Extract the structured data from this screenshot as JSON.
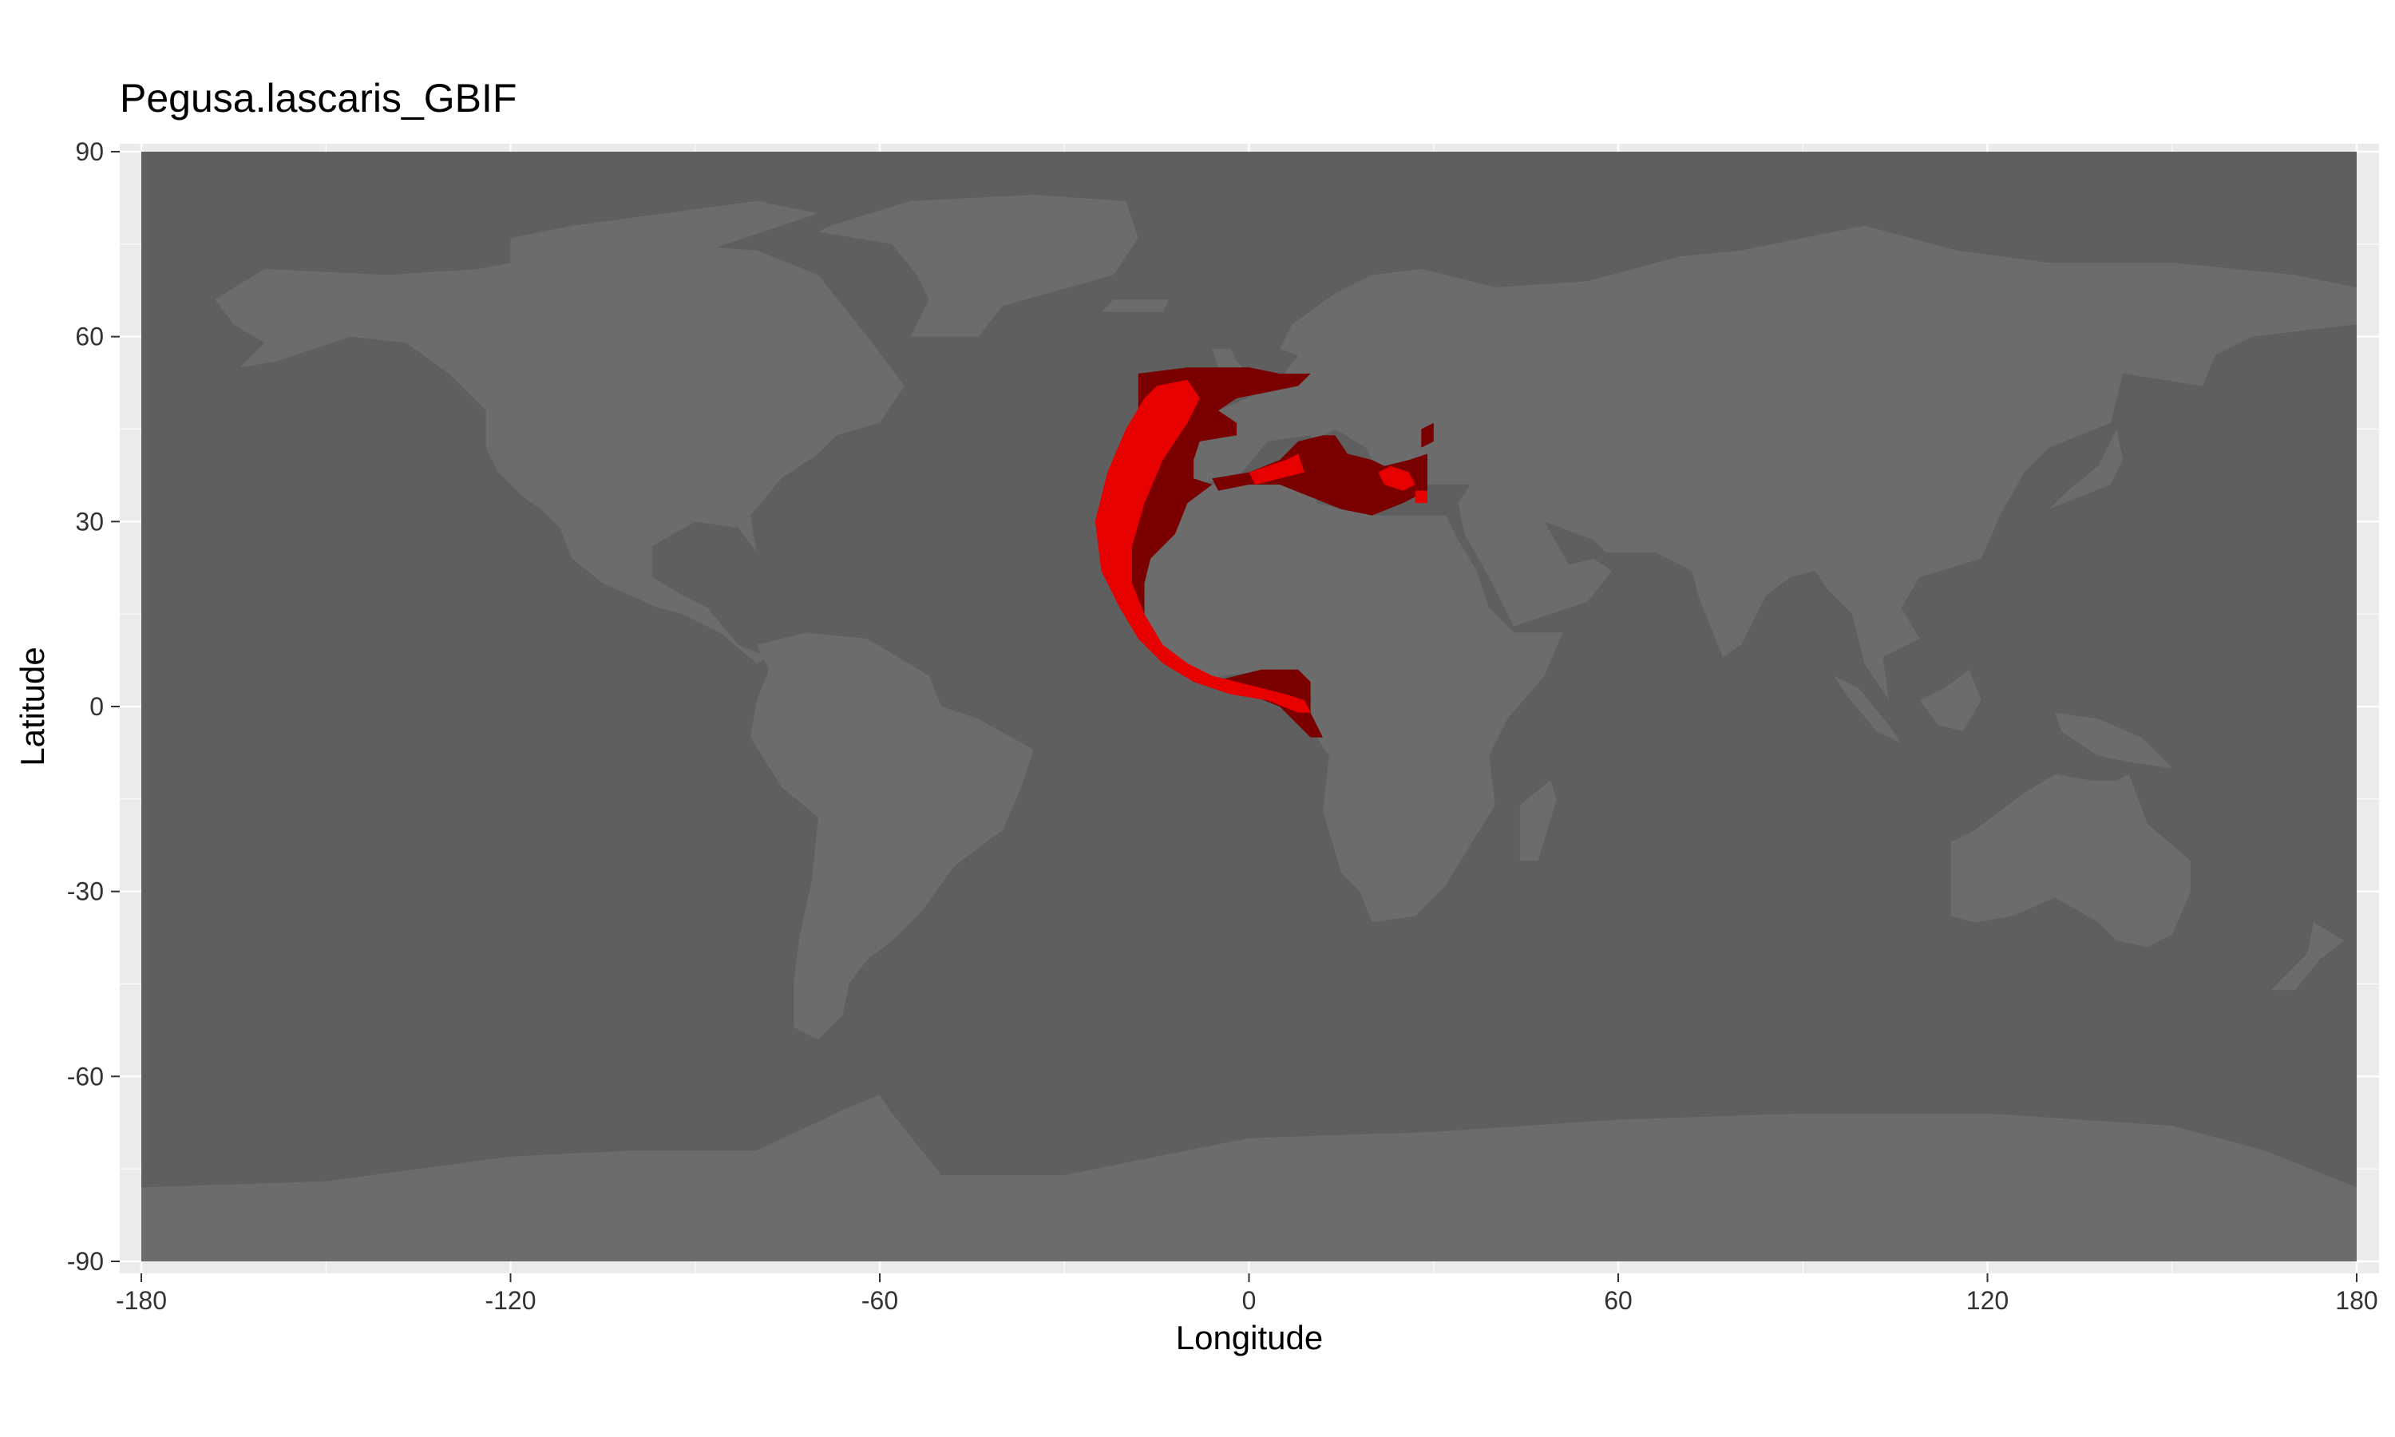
{
  "title": "Pegusa.lascaris_GBIF",
  "x_axis": {
    "label": "Longitude",
    "ticks": [
      "-180",
      "-120",
      "-60",
      "0",
      "60",
      "120",
      "180"
    ],
    "tick_values": [
      -180,
      -120,
      -60,
      0,
      60,
      120,
      180
    ],
    "range": [
      -180,
      180
    ]
  },
  "y_axis": {
    "label": "Latitude",
    "ticks": [
      "90",
      "60",
      "30",
      "0",
      "-30",
      "-60",
      "-90"
    ],
    "tick_values": [
      90,
      60,
      30,
      0,
      -30,
      -60,
      -90
    ],
    "range": [
      -90,
      90
    ]
  },
  "colors": {
    "panel_background": "#ebebeb",
    "ocean": "#5f5f5f",
    "land": "#6c6c6c",
    "grid": "#ffffff",
    "suitable_high": "#e60000",
    "suitable_medium": "#7a0000"
  },
  "map_layers": {
    "ocean": "ocean",
    "land": "land masses (world)",
    "suitable_high": "bright red predicted distribution",
    "suitable_medium": "dark red predicted distribution"
  }
}
